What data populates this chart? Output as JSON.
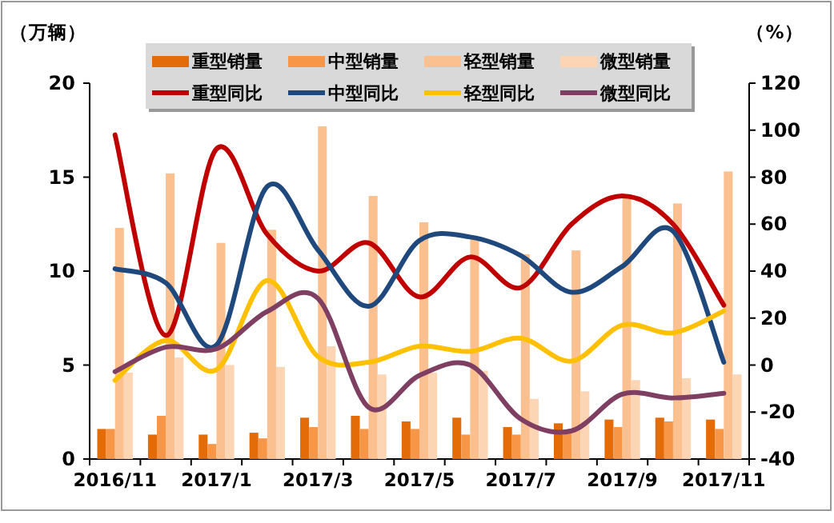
{
  "chart_data": {
    "type": "bar",
    "ylabel": "（万辆）",
    "y2label": "（%）",
    "categories": [
      "2016/11",
      null,
      "2017/1",
      null,
      "2017/3",
      null,
      "2017/5",
      null,
      "2017/7",
      null,
      "2017/9",
      null,
      "2017/11"
    ],
    "ylim": [
      0,
      20
    ],
    "yticks": [
      0,
      5,
      10,
      15,
      20
    ],
    "y2lim": [
      -40,
      120
    ],
    "y2ticks": [
      -40,
      -20,
      0,
      20,
      40,
      60,
      80,
      100,
      120
    ],
    "legend": "top",
    "marker": "none",
    "series": [
      {
        "name": "重型销量",
        "color": "#e36c09",
        "values": [
          1.6,
          1.3,
          1.3,
          1.4,
          2.2,
          2.3,
          2.0,
          2.2,
          1.7,
          1.9,
          2.1,
          2.2,
          2.1
        ]
      },
      {
        "name": "中型销量",
        "color": "#f79646",
        "values": [
          1.6,
          2.3,
          0.8,
          1.1,
          1.7,
          1.6,
          1.6,
          1.3,
          1.3,
          1.4,
          1.7,
          2.0,
          1.6
        ]
      },
      {
        "name": "轻型销量",
        "color": "#fac090",
        "values": [
          12.3,
          15.2,
          11.5,
          12.2,
          17.7,
          14.0,
          12.6,
          11.7,
          10.9,
          11.1,
          14.0,
          13.6,
          15.3
        ]
      },
      {
        "name": "微型销量",
        "color": "#fcd5b5",
        "values": [
          4.6,
          5.4,
          5.0,
          4.9,
          6.0,
          4.5,
          4.6,
          4.7,
          3.2,
          3.6,
          4.2,
          4.3,
          4.5
        ]
      },
      {
        "name": "重型同比",
        "type": "line",
        "axis": "y2",
        "color": "#c00000",
        "values": [
          98,
          12.6,
          92,
          55.6,
          40,
          52,
          29,
          46,
          33,
          60,
          72,
          60,
          25.5
        ]
      },
      {
        "name": "中型同比",
        "type": "line",
        "axis": "y2",
        "color": "#1f497d",
        "values": [
          41,
          35,
          8.5,
          76,
          49,
          25,
          53,
          54.5,
          46.6,
          31,
          42,
          57,
          1.2
        ]
      },
      {
        "name": "轻型同比",
        "type": "line",
        "axis": "y2",
        "color": "#ffc000",
        "values": [
          -6.5,
          10.5,
          -2,
          36,
          3.6,
          1.2,
          8,
          5.8,
          11.4,
          1.7,
          17,
          13.7,
          23
        ]
      },
      {
        "name": "微型同比",
        "type": "line",
        "axis": "y2",
        "color": "#7f3f62",
        "values": [
          -2.8,
          7.6,
          6.9,
          22.8,
          28.4,
          -18,
          -4.4,
          0,
          -23,
          -28,
          -12.4,
          -14,
          -12
        ]
      }
    ]
  }
}
